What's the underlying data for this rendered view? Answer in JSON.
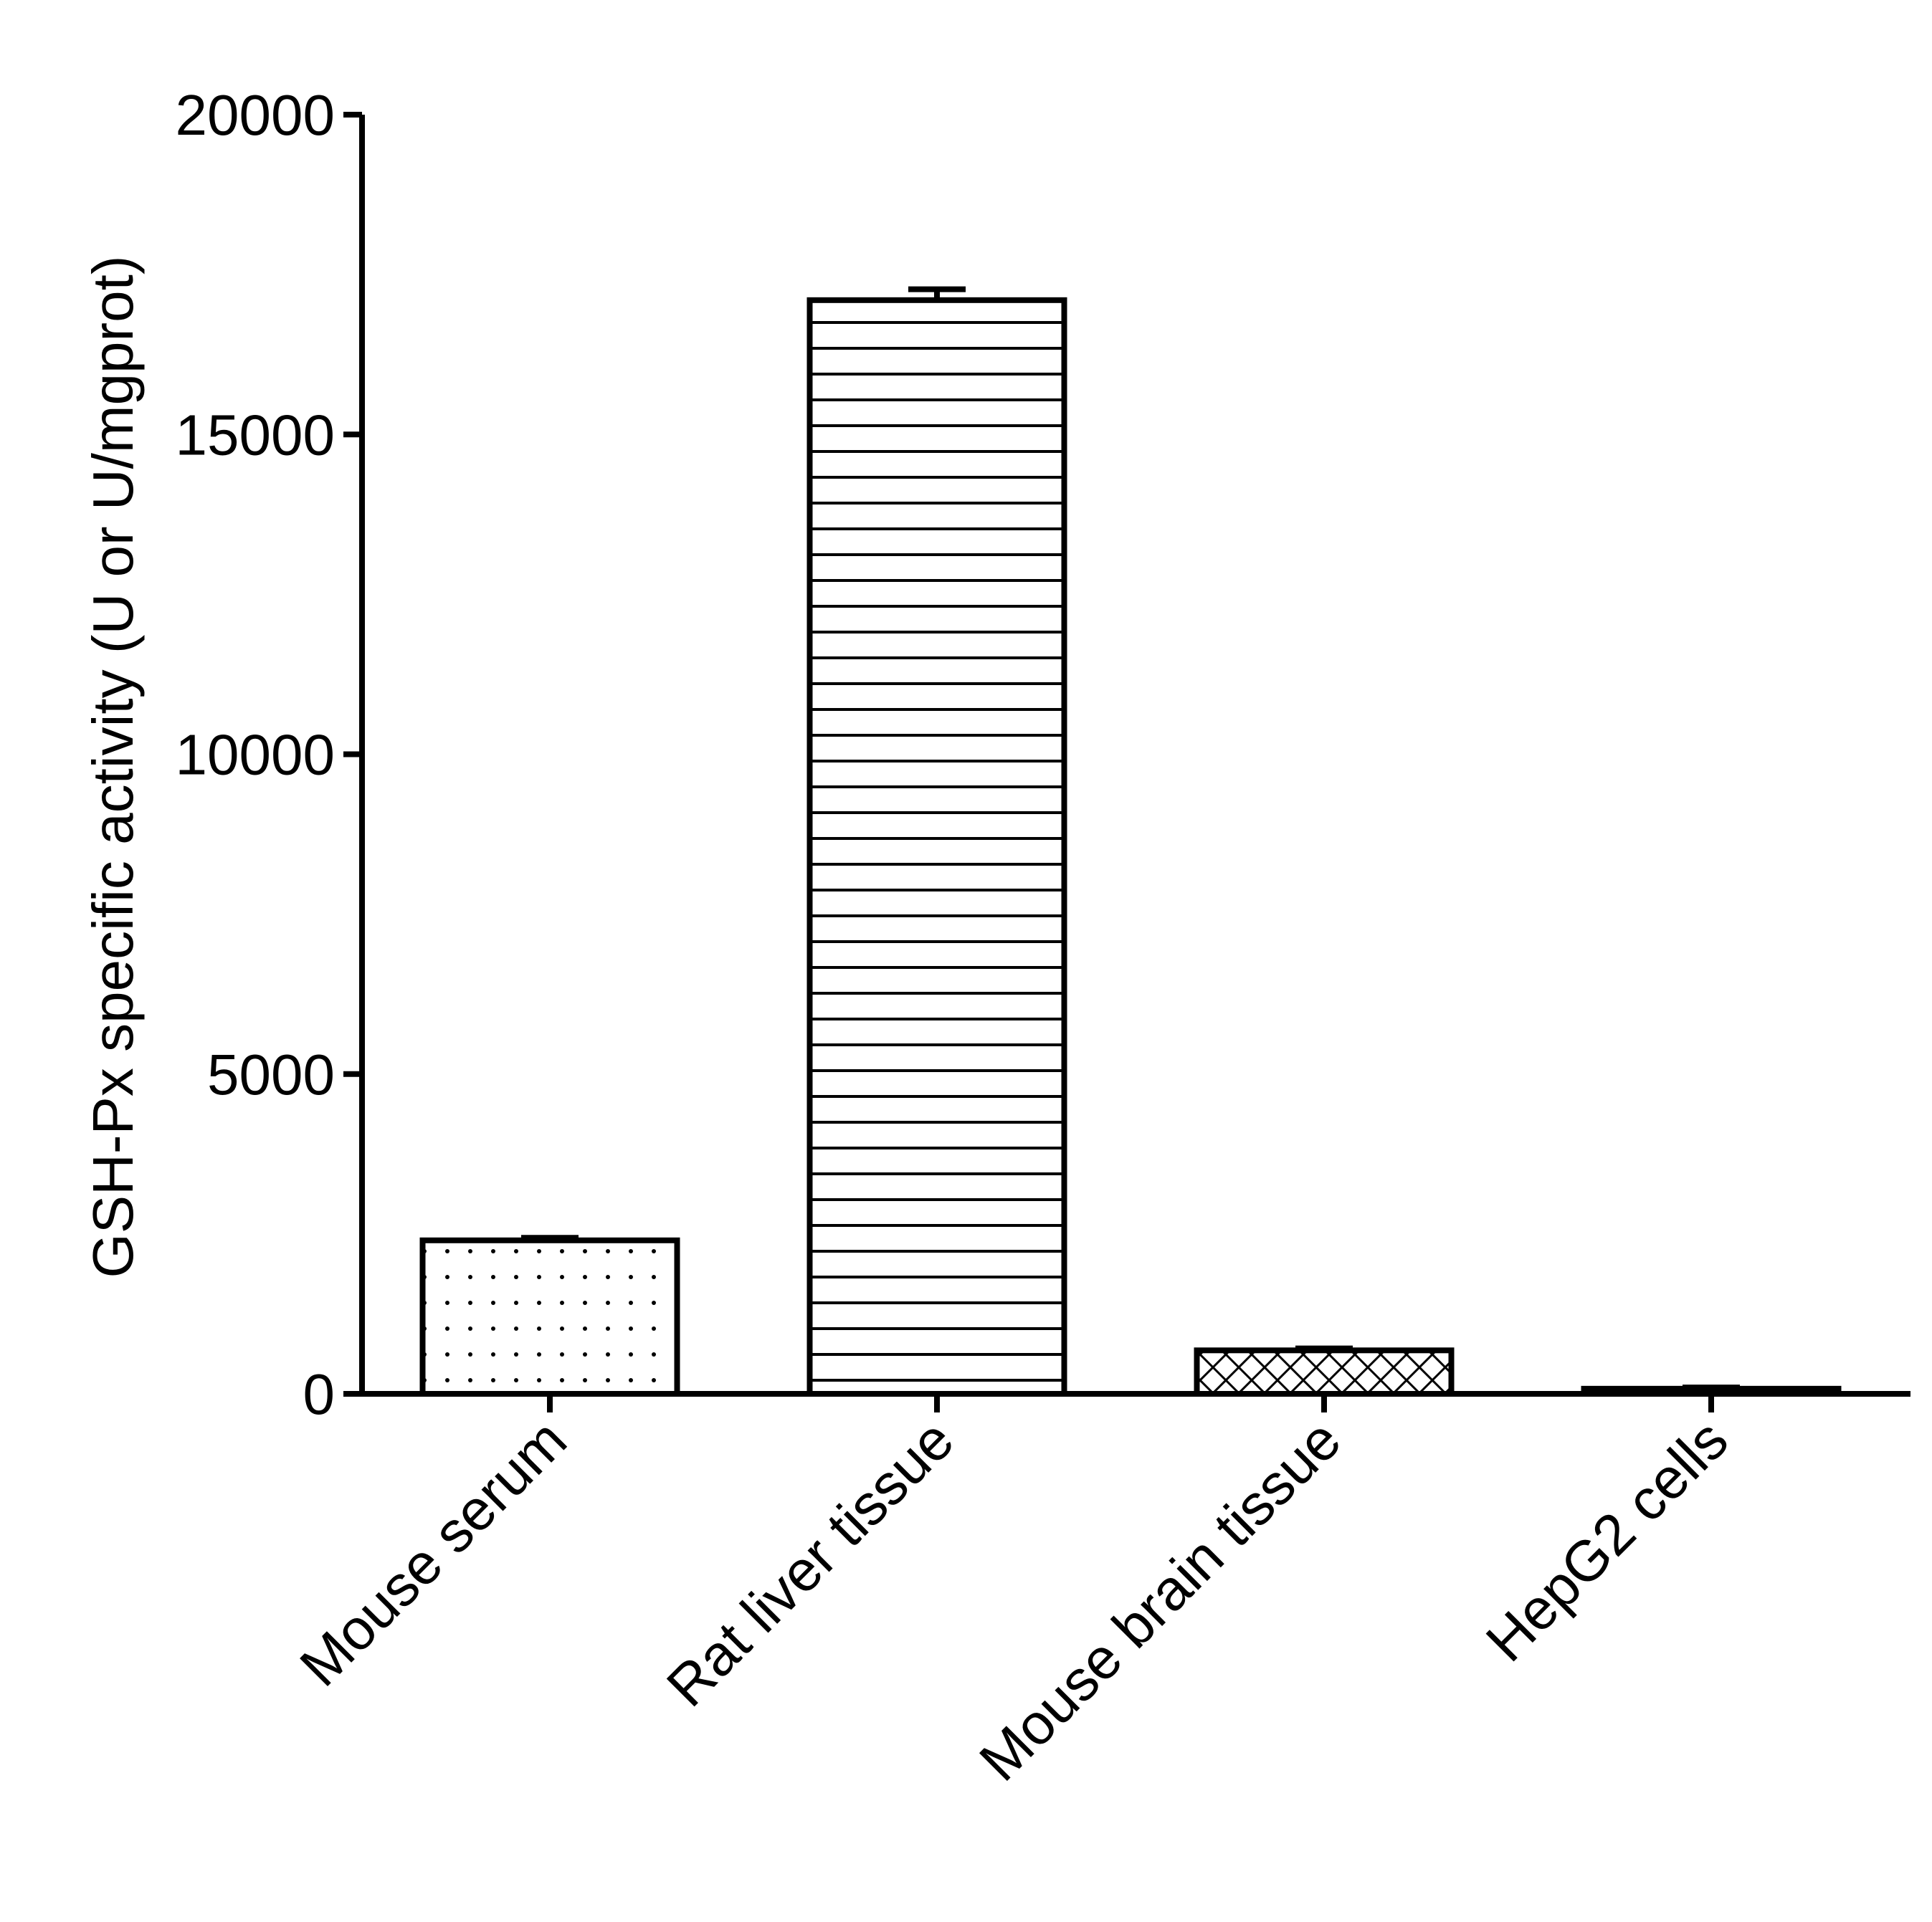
{
  "chart_data": {
    "type": "bar",
    "title": "",
    "xlabel": "",
    "ylabel": "GSH-Px specific activity (U or U/mgprot)",
    "ylim": [
      0,
      20000
    ],
    "yticks": [
      "0",
      "5000",
      "10000",
      "15000",
      "20000"
    ],
    "ytick_values": [
      0,
      5000,
      10000,
      15000,
      20000
    ],
    "grid": false,
    "legend": "none",
    "categories": [
      "Mouse serum",
      "Rat liver tissue",
      "Mouse brain tissue",
      "HepG2 cells"
    ],
    "values": [
      2400,
      17100,
      680,
      80
    ],
    "errors": [
      40,
      170,
      30,
      20
    ],
    "patterns": [
      "dots",
      "horizontal-lines",
      "crosshatch",
      "solid"
    ],
    "colors": {
      "stroke": "#000000",
      "fill": "#ffffff"
    }
  }
}
